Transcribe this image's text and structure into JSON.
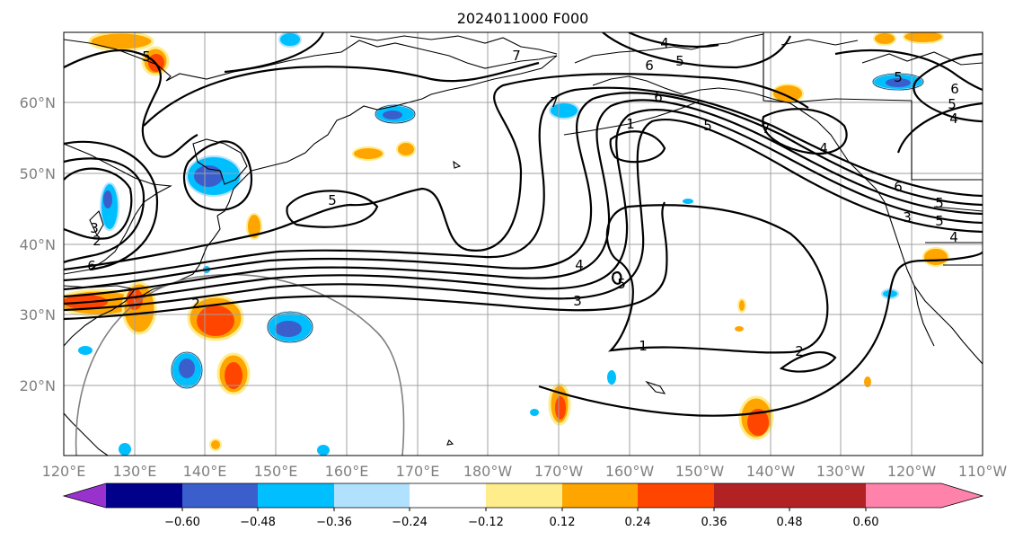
{
  "title": "2024011000 F000",
  "lat_labels": [
    "60°N",
    "50°N",
    "40°N",
    "30°N",
    "20°N"
  ],
  "lon_labels": [
    "120°E",
    "130°E",
    "140°E",
    "150°E",
    "160°E",
    "170°E",
    "180°W",
    "170°W",
    "160°W",
    "150°W",
    "140°W",
    "130°W",
    "120°W",
    "110°W"
  ],
  "colorbar": {
    "colors": [
      "#9932cc",
      "#00008b",
      "#3a5fcd",
      "#00bfff",
      "#b0e2ff",
      "#ffffff",
      "#ffec8b",
      "#ffa500",
      "#ff4500",
      "#b22222",
      "#ff82ab"
    ],
    "labels": [
      "−0.60",
      "−0.48",
      "−0.36",
      "−0.24",
      "−0.12",
      "0.12",
      "0.24",
      "0.36",
      "0.48",
      "0.60"
    ]
  },
  "contour_labels": [
    "5",
    "5",
    "4",
    "6",
    "5",
    "6",
    "7",
    "1",
    "5",
    "6",
    "5",
    "6",
    "5",
    "4",
    "7",
    "4",
    "5",
    "3",
    "4",
    "5",
    "3",
    "2",
    "1",
    "2",
    "6",
    "3",
    "2",
    "4",
    "7",
    "5"
  ]
}
